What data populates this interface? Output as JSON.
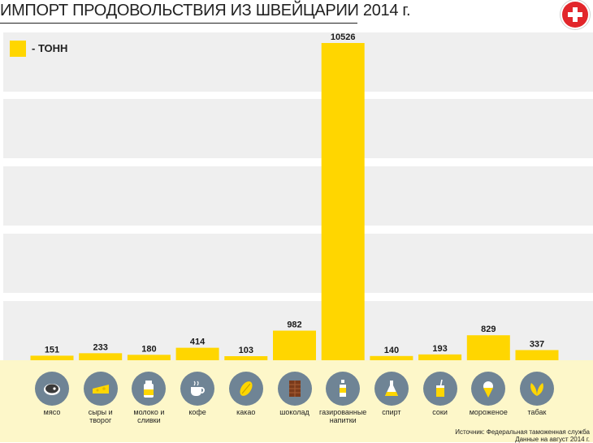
{
  "title": "ИМПОРТ ПРОДОВОЛЬСТВИЯ ИЗ ШВЕЙЦАРИИ 2014 г.",
  "legend": {
    "label": "- ТОНН"
  },
  "source": {
    "line1": "Источник: Федеральная таможенная служба",
    "line2": "Данные на август 2014 г."
  },
  "colors": {
    "bar": "#ffd600",
    "band": "#efefef",
    "bottom": "#fdf7c9",
    "icon": "#6f8495",
    "flag": "#e2262b"
  },
  "chart_data": {
    "type": "bar",
    "categories": [
      "мясо",
      "сыры и\nтворог",
      "молоко и\nсливки",
      "кофе",
      "какао",
      "шоколад",
      "газированные\nнапитки",
      "спирт",
      "соки",
      "мороженое",
      "табак"
    ],
    "values": [
      151,
      233,
      180,
      414,
      103,
      982,
      10526,
      140,
      193,
      829,
      337
    ],
    "unit": "тонн",
    "ylim": [
      0,
      10526
    ]
  },
  "icons": [
    "meat-icon",
    "cheese-icon",
    "milk-icon",
    "coffee-icon",
    "cocoa-icon",
    "chocolate-icon",
    "soda-icon",
    "spirit-icon",
    "juice-icon",
    "ice-cream-icon",
    "tobacco-icon"
  ]
}
